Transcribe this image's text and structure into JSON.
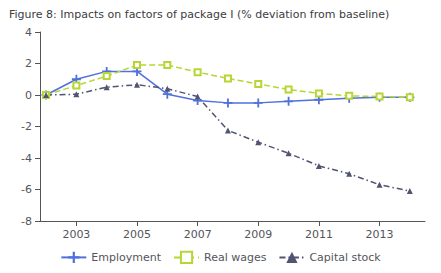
{
  "chart_data": {
    "type": "line",
    "title": "Figure 8: Impacts on factors of package I (% deviation from baseline)",
    "x": [
      2002,
      2003,
      2004,
      2005,
      2006,
      2007,
      2008,
      2009,
      2010,
      2011,
      2012,
      2013,
      2014
    ],
    "series": [
      {
        "name": "Employment",
        "values": [
          0.0,
          1.0,
          1.5,
          1.5,
          0.05,
          -0.35,
          -0.5,
          -0.5,
          -0.4,
          -0.3,
          -0.2,
          -0.15,
          -0.15
        ],
        "marker": "plus",
        "line_style": "solid"
      },
      {
        "name": "Real wages",
        "values": [
          0.0,
          0.6,
          1.2,
          1.9,
          1.9,
          1.45,
          1.05,
          0.7,
          0.35,
          0.1,
          -0.05,
          -0.1,
          -0.15
        ],
        "marker": "open_square",
        "line_style": "dashed"
      },
      {
        "name": "Capital stock",
        "values": [
          0.0,
          0.05,
          0.5,
          0.65,
          0.4,
          -0.1,
          -2.25,
          -3.0,
          -3.7,
          -4.5,
          -5.0,
          -5.7,
          -6.1
        ],
        "marker": "triangle",
        "line_style": "dashdot"
      }
    ],
    "xlim": [
      2001.8,
      2014.5
    ],
    "xticks": [
      2003,
      2005,
      2007,
      2009,
      2011,
      2013
    ],
    "ylim": [
      -8,
      4
    ],
    "yticks": [
      -8,
      -6,
      -4,
      -2,
      0,
      2,
      4
    ],
    "grid": false,
    "legend": "bottom"
  }
}
